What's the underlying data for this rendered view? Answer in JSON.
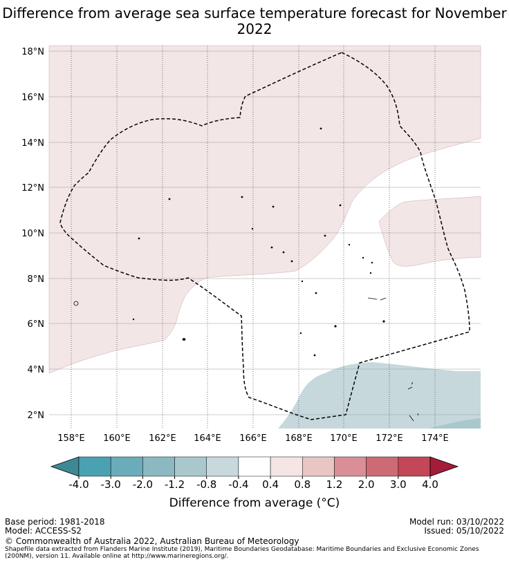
{
  "title": "Difference from average sea surface temperature forecast for November 2022",
  "map": {
    "lon_ticks": [
      "158°E",
      "160°E",
      "162°E",
      "164°E",
      "166°E",
      "168°E",
      "170°E",
      "172°E",
      "174°E"
    ],
    "lat_ticks": [
      "18°N",
      "16°N",
      "14°N",
      "12°N",
      "10°N",
      "8°N",
      "6°N",
      "4°N",
      "2°N"
    ],
    "extent": {
      "lon_min": 157.0,
      "lon_max": 176.0,
      "lat_min": 1.5,
      "lat_max": 18.25
    },
    "colors": {
      "warm_fill": "#f3e6e6",
      "cool_fill": "#c6d8dc",
      "neutral_fill": "#ffffff"
    }
  },
  "colorbar": {
    "tick_labels": [
      "-4.0",
      "-3.0",
      "-2.0",
      "-1.2",
      "-0.8",
      "-0.4",
      "0.4",
      "0.8",
      "1.2",
      "2.0",
      "3.0",
      "4.0"
    ],
    "colors": [
      "#3d8a96",
      "#4aa1b1",
      "#6aacba",
      "#8bb9c2",
      "#a9c8ce",
      "#c7d9dd",
      "#ffffff",
      "#f5e5e4",
      "#e8c6c4",
      "#d98f95",
      "#cd6b75",
      "#c24757",
      "#a31c3a"
    ],
    "title": "Difference from average ($^\\circ$C)",
    "title_display": "Difference from average (°C)"
  },
  "footer": {
    "base_period": "Base period: 1981-2018",
    "model": "Model: ACCESS-S2",
    "model_run": "Model run: 03/10/2022",
    "issued": "Issued: 05/10/2022",
    "copyright": "© Commonwealth of Australia 2022, Australian Bureau of Meteorology",
    "shapefile": "Shapefile data extracted from Flanders Marine Institute (2019), Maritime Boundaries Geodatabase: Maritime Boundaries and Exclusive Economic Zones (200NM), version 11. Available online at http://www.marineregions.org/."
  }
}
